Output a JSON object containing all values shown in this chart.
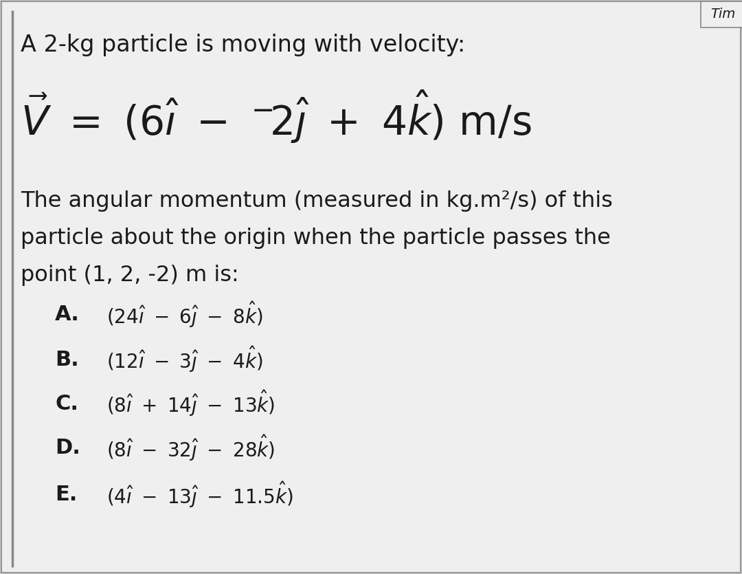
{
  "background_color": "#c8c8c8",
  "box_color": "#f0efef",
  "text_color": "#1a1a1a",
  "title_text": "Tim",
  "line1": "A 2-kg particle is moving with velocity:",
  "line3": "The angular momentum (measured in kg.m²/s) of this",
  "line4": "particle about the origin when the particle passes the",
  "line5": "point (1, 2, -2) m is:",
  "optA_label": "A.",
  "optB_label": "B.",
  "optC_label": "C.",
  "optD_label": "D.",
  "optE_label": "E.",
  "fig_width": 10.8,
  "fig_height": 8.35,
  "dpi": 100
}
